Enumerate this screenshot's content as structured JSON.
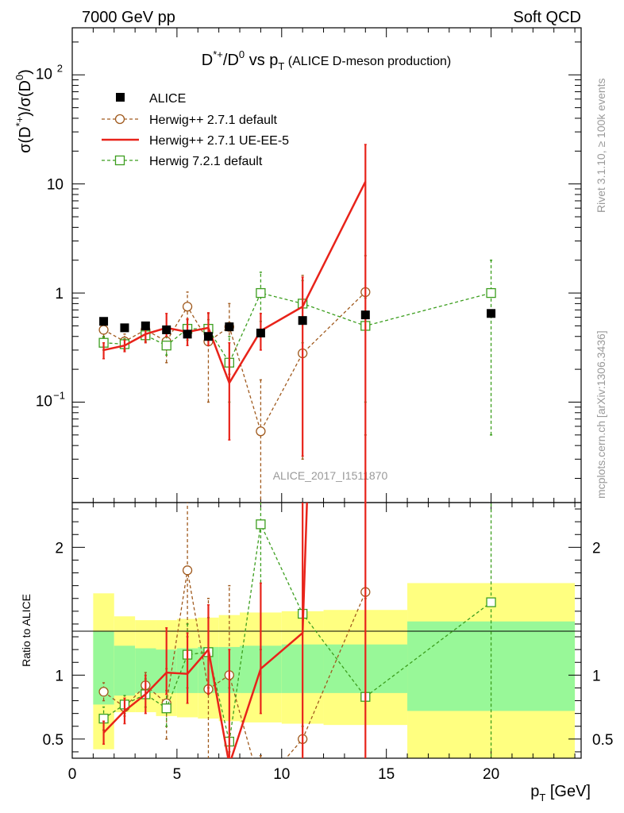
{
  "header": {
    "left": "7000 GeV pp",
    "right": "Soft QCD",
    "side_rivet": "Rivet 3.1.10, ≥ 100k events",
    "side_mcplots": "mcplots.cern.ch [arXiv:1306.3436]",
    "analysis_id": "ALICE_2017_I1511870"
  },
  "title": {
    "main": "D*+/D0 vs pT",
    "sub": "(ALICE D-meson production)"
  },
  "axes": {
    "ylabel_main": "σ(D*+)/σ(D0)",
    "ylabel_ratio": "Ratio to ALICE",
    "xlabel": "pT [GeV]",
    "xlim": [
      0,
      24.3
    ],
    "main_ylog": true,
    "main_ylim": [
      0.012,
      270
    ],
    "ratio_ylim": [
      0.35,
      2.35
    ],
    "xticks": [
      "0",
      "5",
      "10",
      "15",
      "20"
    ],
    "main_yticks": [
      "10−1",
      "1",
      "10",
      "102"
    ],
    "ratio_yticks": [
      "0.5",
      "1",
      "2"
    ]
  },
  "legend": [
    {
      "label": "ALICE",
      "color": "#000000",
      "style": "marker-square"
    },
    {
      "label": "Herwig++ 2.7.1 default",
      "color": "#a05a1e",
      "style": "dashed-circle"
    },
    {
      "label": "Herwig++ 2.7.1 UE-EE-5",
      "color": "#e8231a",
      "style": "solid"
    },
    {
      "label": "Herwig 7.2.1 default",
      "color": "#3c9e1e",
      "style": "dashed-square"
    }
  ],
  "chart_data": {
    "type": "scatter",
    "x_bins": [
      [
        1,
        2
      ],
      [
        2,
        3
      ],
      [
        3,
        4
      ],
      [
        4,
        5
      ],
      [
        5,
        6
      ],
      [
        6,
        7
      ],
      [
        7,
        8
      ],
      [
        8,
        10
      ],
      [
        10,
        12
      ],
      [
        12,
        16
      ],
      [
        16,
        24
      ]
    ],
    "x": [
      1.5,
      2.5,
      3.5,
      4.5,
      5.5,
      6.5,
      7.5,
      9,
      11,
      14,
      20
    ],
    "series": [
      {
        "name": "ALICE",
        "color": "#000000",
        "values": [
          0.55,
          0.48,
          0.5,
          0.46,
          0.42,
          0.4,
          0.49,
          0.43,
          0.56,
          0.63,
          0.65
        ],
        "ratio_band_inner": [
          [
            0.77,
            1.34
          ],
          [
            0.84,
            1.23
          ],
          [
            0.86,
            1.21
          ],
          [
            0.86,
            1.2
          ],
          [
            0.86,
            1.21
          ],
          [
            0.86,
            1.22
          ],
          [
            0.86,
            1.22
          ],
          [
            0.86,
            1.23
          ],
          [
            0.86,
            1.24
          ],
          [
            0.86,
            1.24
          ],
          [
            0.72,
            1.42
          ]
        ],
        "ratio_band_outer": [
          [
            0.42,
            1.64
          ],
          [
            0.71,
            1.46
          ],
          [
            0.71,
            1.43
          ],
          [
            0.68,
            1.43
          ],
          [
            0.67,
            1.44
          ],
          [
            0.66,
            1.45
          ],
          [
            0.64,
            1.47
          ],
          [
            0.63,
            1.49
          ],
          [
            0.62,
            1.5
          ],
          [
            0.61,
            1.51
          ],
          [
            0.32,
            1.72
          ]
        ]
      },
      {
        "name": "Herwig++ 2.7.1 default",
        "color": "#a05a1e",
        "values": [
          0.46,
          0.36,
          0.46,
          0.36,
          0.75,
          0.36,
          0.49,
          0.054,
          0.28,
          1.02
        ],
        "errors": [
          [
            0.39,
            0.53
          ],
          [
            0.3,
            0.42
          ],
          [
            0.38,
            0.54
          ],
          [
            0.23,
            0.48
          ],
          [
            0.5,
            1.02
          ],
          [
            0.1,
            0.65
          ],
          [
            0.18,
            0.8
          ],
          [
            0.005,
            0.16
          ],
          [
            0.03,
            1.45
          ],
          [
            0.05,
            2.2
          ]
        ],
        "ratio": [
          0.87,
          0.75,
          0.92,
          0.78,
          1.82,
          0.89,
          1.0,
          0.12,
          0.5,
          1.65
        ],
        "ratio_errors": [
          [
            0.8,
            0.94
          ],
          [
            0.68,
            0.82
          ],
          [
            0.82,
            1.02
          ],
          [
            0.5,
            1.05
          ],
          [
            1.3,
            2.5
          ],
          [
            0.3,
            1.6
          ],
          [
            0.4,
            1.7
          ],
          [
            0.0,
            0.37
          ],
          [
            0.05,
            2.6
          ],
          [
            0.08,
            3.5
          ]
        ]
      },
      {
        "name": "Herwig++ 2.7.1 UE-EE-5",
        "color": "#e8231a",
        "values": [
          0.3,
          0.33,
          0.42,
          0.48,
          0.44,
          0.48,
          0.15,
          0.45,
          0.75,
          10.5
        ],
        "errors": [
          [
            0.25,
            0.35
          ],
          [
            0.29,
            0.37
          ],
          [
            0.35,
            0.5
          ],
          [
            0.4,
            0.65
          ],
          [
            0.33,
            0.58
          ],
          [
            0.33,
            0.66
          ],
          [
            0.045,
            0.35
          ],
          [
            0.3,
            0.65
          ],
          [
            0.032,
            1.4
          ],
          [
            0.012,
            23
          ]
        ],
        "ratio": [
          0.55,
          0.72,
          0.85,
          1.02,
          1.01,
          1.2,
          0.3,
          1.05,
          1.33,
          16.0
        ],
        "ratio_errors": [
          [
            0.46,
            0.64
          ],
          [
            0.62,
            0.82
          ],
          [
            0.7,
            1.0
          ],
          [
            0.85,
            1.37
          ],
          [
            0.78,
            1.33
          ],
          [
            0.85,
            1.55
          ],
          [
            0.0,
            1.2
          ],
          [
            0.7,
            1.72
          ],
          [
            0.06,
            2.6
          ],
          [
            0.0,
            30.0
          ]
        ]
      },
      {
        "name": "Herwig 7.2.1 default",
        "color": "#3c9e1e",
        "values": [
          0.35,
          0.34,
          0.41,
          0.33,
          0.47,
          0.47,
          0.23,
          1.0,
          0.8,
          0.5,
          1.0
        ],
        "errors": [
          [
            0.3,
            0.4
          ],
          [
            0.31,
            0.38
          ],
          [
            0.36,
            0.47
          ],
          [
            0.27,
            0.4
          ],
          [
            0.37,
            0.57
          ],
          [
            0.37,
            0.57
          ],
          [
            0.1,
            0.4
          ],
          [
            0.55,
            1.55
          ],
          [
            0.35,
            1.3
          ],
          [
            0.1,
            0.9
          ],
          [
            0.05,
            2.0
          ]
        ],
        "ratio": [
          0.66,
          0.77,
          0.85,
          0.74,
          1.16,
          1.18,
          0.48,
          2.18,
          1.48,
          0.83,
          1.57
        ],
        "ratio_errors": [
          [
            0.57,
            0.75
          ],
          [
            0.7,
            0.84
          ],
          [
            0.75,
            0.97
          ],
          [
            0.6,
            0.88
          ],
          [
            0.9,
            1.4
          ],
          [
            0.9,
            1.45
          ],
          [
            0.2,
            0.9
          ],
          [
            1.2,
            3.2
          ],
          [
            0.6,
            2.4
          ],
          [
            0.15,
            1.6
          ],
          [
            0.1,
            3.2
          ]
        ]
      }
    ]
  }
}
